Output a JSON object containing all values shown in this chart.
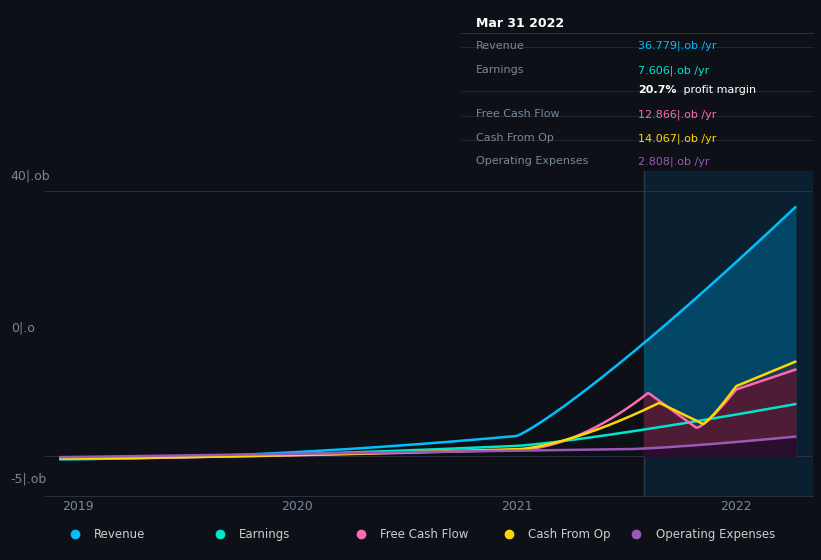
{
  "bg_color": "#0d1117",
  "right_bg": "#0a2030",
  "highlight_x": 2021.58,
  "ylim": [
    -6,
    43
  ],
  "xlim": [
    2018.85,
    2022.35
  ],
  "ytick_vals": [
    -5,
    0,
    40
  ],
  "ytick_labels": [
    "-5|.ob",
    "0|.o",
    "40|.ob"
  ],
  "xtick_vals": [
    2019,
    2020,
    2021,
    2022
  ],
  "series": {
    "Revenue": {
      "color": "#00bfff",
      "fill_color": "#004d6e",
      "fill_alpha": 0.85
    },
    "Earnings": {
      "color": "#00e5cc",
      "fill_color": "#003830",
      "fill_alpha": 0.85
    },
    "CashFromOp": {
      "color": "#ffd700",
      "fill_color": "#1e3a4a",
      "fill_alpha": 0.9
    },
    "FreeCashFlow": {
      "color": "#ff69b4",
      "fill_color": "#5c1530",
      "fill_alpha": 0.8
    },
    "OperatingExpenses": {
      "color": "#9b59b6",
      "fill_color": "#1a0a28",
      "fill_alpha": 0.7
    }
  },
  "info_box": {
    "title": "Mar 31 2022",
    "rows": [
      {
        "label": "Revenue",
        "value": "36.779|.ob /yr",
        "color": "#00bfff",
        "sep": true
      },
      {
        "label": "Earnings",
        "value": "7.606|.ob /yr",
        "color": "#00e5cc",
        "sep": false
      },
      {
        "label": "",
        "value": "20.7%",
        "extra": " profit margin",
        "color": "#ffffff",
        "sep": true
      },
      {
        "label": "Free Cash Flow",
        "value": "12.866|.ob /yr",
        "color": "#ff69b4",
        "sep": true
      },
      {
        "label": "Cash From Op",
        "value": "14.067|.ob /yr",
        "color": "#ffd700",
        "sep": true
      },
      {
        "label": "Operating Expenses",
        "value": "2.808|.ob /yr",
        "color": "#9b59b6",
        "sep": false
      }
    ]
  },
  "legend": [
    {
      "label": "Revenue",
      "color": "#00bfff"
    },
    {
      "label": "Earnings",
      "color": "#00e5cc"
    },
    {
      "label": "Free Cash Flow",
      "color": "#ff69b4"
    },
    {
      "label": "Cash From Op",
      "color": "#ffd700"
    },
    {
      "label": "Operating Expenses",
      "color": "#9b59b6"
    }
  ]
}
